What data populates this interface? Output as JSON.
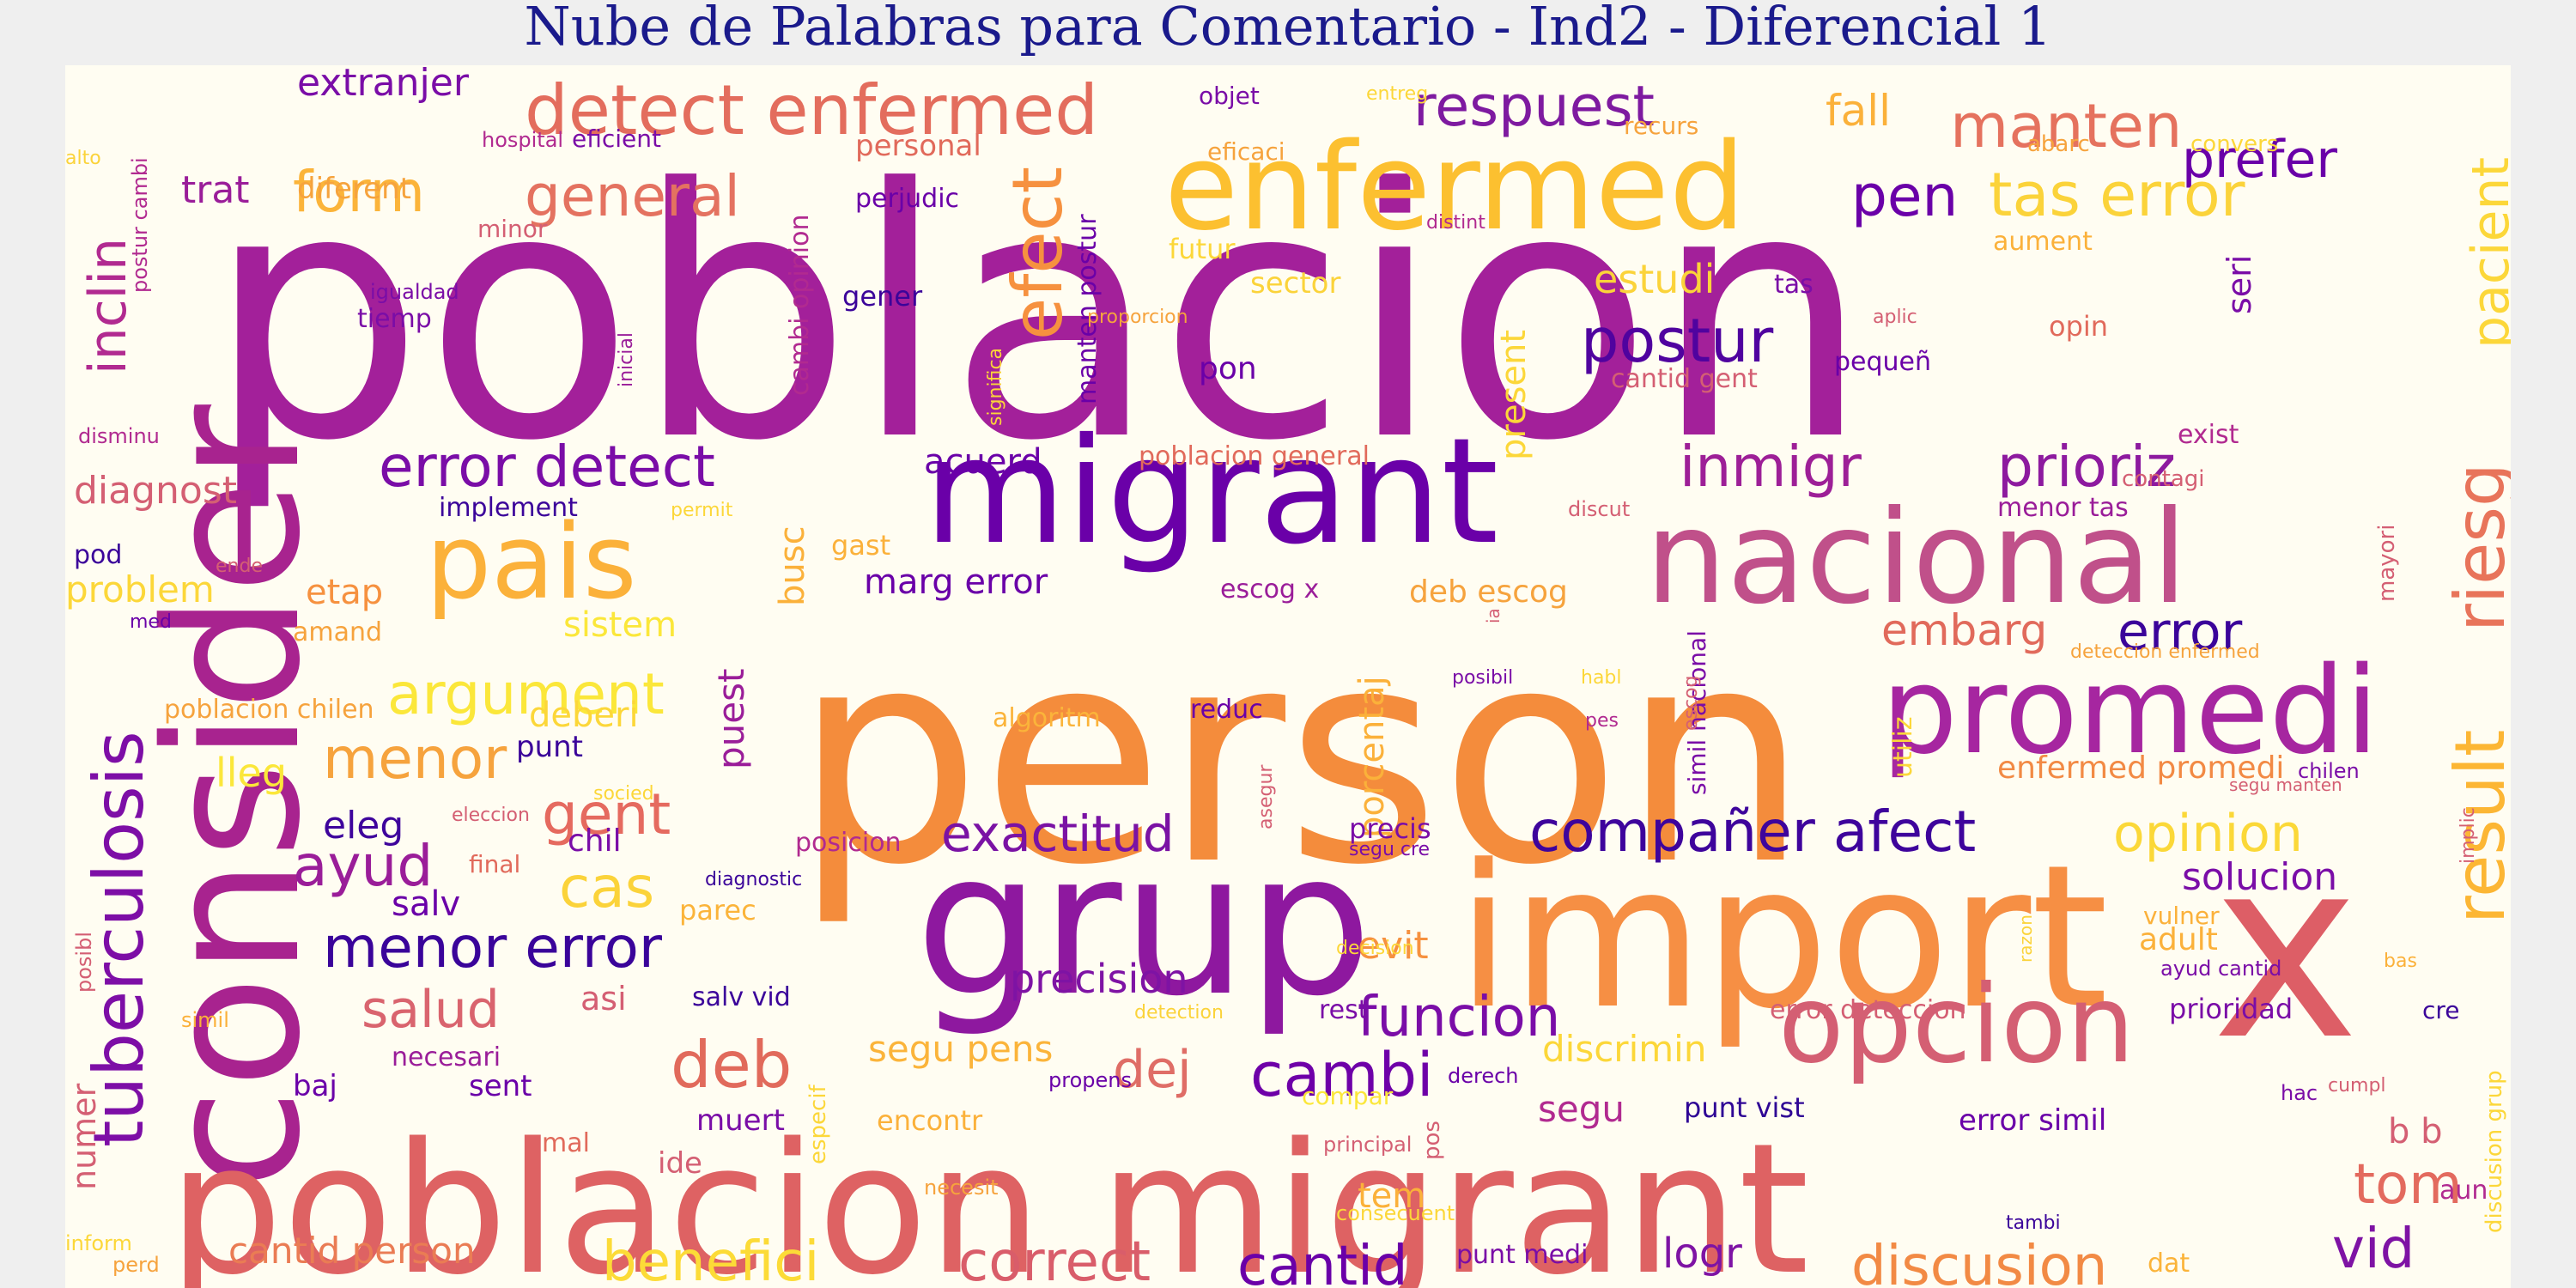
{
  "title": "Nube de Palabras para Comentario - Ind2 - Diferencial 1",
  "chart_data": {
    "type": "wordcloud",
    "colormap": [
      "#0d0887",
      "#6a00a8",
      "#b12a90",
      "#e16462",
      "#fca636",
      "#f0f921"
    ],
    "words": [
      {
        "text": "poblacion",
        "color": "#a3209a"
      },
      {
        "text": "person",
        "color": "#f48c3c"
      },
      {
        "text": "consider",
        "color": "#a8238f"
      },
      {
        "text": "grup",
        "color": "#8e189f"
      },
      {
        "text": "import",
        "color": "#f68f44"
      },
      {
        "text": "x",
        "color": "#dd5e66"
      },
      {
        "text": "poblacion migrant",
        "color": "#de6263"
      },
      {
        "text": "migrant",
        "color": "#6a00a8"
      },
      {
        "text": "enfermed",
        "color": "#fcc030"
      },
      {
        "text": "nacional",
        "color": "#c0508a"
      },
      {
        "text": "promedi",
        "color": "#a626a0"
      },
      {
        "text": "opcion",
        "color": "#d45f73"
      },
      {
        "text": "pais",
        "color": "#fbb13a"
      },
      {
        "text": "detect enfermed",
        "color": "#e36d5d"
      },
      {
        "text": "tuberculosis",
        "color": "#7d0ea6"
      },
      {
        "text": "respuest",
        "color": "#7e1aa0"
      },
      {
        "text": "manten",
        "color": "#e5725e"
      },
      {
        "text": "prefer",
        "color": "#6a00a8"
      },
      {
        "text": "tas error",
        "color": "#fbd33a"
      },
      {
        "text": "pacient",
        "color": "#fcd739"
      },
      {
        "text": "general",
        "color": "#e47260"
      },
      {
        "text": "form",
        "color": "#fbb43a"
      },
      {
        "text": "pen",
        "color": "#6a00a8"
      },
      {
        "text": "efect",
        "color": "#f6913f"
      },
      {
        "text": "postur",
        "color": "#50039f"
      },
      {
        "text": "error detect",
        "color": "#7a0da7"
      },
      {
        "text": "inmigr",
        "color": "#9d1f97"
      },
      {
        "text": "prioriz",
        "color": "#8d1a9f"
      },
      {
        "text": "riesg",
        "color": "#e8745a"
      },
      {
        "text": "error",
        "color": "#3b049a"
      },
      {
        "text": "embarg",
        "color": "#e16a5b"
      },
      {
        "text": "argument",
        "color": "#fbe73a"
      },
      {
        "text": "menor",
        "color": "#f6a33d"
      },
      {
        "text": "gent",
        "color": "#e56a5f"
      },
      {
        "text": "ayud",
        "color": "#9a1d99"
      },
      {
        "text": "cas",
        "color": "#fbd33a"
      },
      {
        "text": "menor error",
        "color": "#3a049a"
      },
      {
        "text": "salud",
        "color": "#d9646e"
      },
      {
        "text": "deb",
        "color": "#e16a5b"
      },
      {
        "text": "exactitud",
        "color": "#7a12a4"
      },
      {
        "text": "compañer afect",
        "color": "#3e049c"
      },
      {
        "text": "opinion",
        "color": "#fbd838"
      },
      {
        "text": "result",
        "color": "#fcb634"
      },
      {
        "text": "cambi",
        "color": "#6e00a8"
      },
      {
        "text": "funcion",
        "color": "#7a0da7"
      },
      {
        "text": "dej",
        "color": "#df6d66"
      },
      {
        "text": "discusion",
        "color": "#f28a44"
      },
      {
        "text": "vid",
        "color": "#7e13a4"
      },
      {
        "text": "tom",
        "color": "#e36a5e"
      },
      {
        "text": "benefici",
        "color": "#fcdb37"
      },
      {
        "text": "correct",
        "color": "#d95d6a"
      },
      {
        "text": "cantid",
        "color": "#6a00a8"
      },
      {
        "text": "cantid person",
        "color": "#ea7c54"
      },
      {
        "text": "logr",
        "color": "#7e13a4"
      },
      {
        "text": "precision",
        "color": "#7e13a4"
      },
      {
        "text": "segu pens",
        "color": "#fbb43a"
      },
      {
        "text": "discrimin",
        "color": "#fcd739"
      },
      {
        "text": "segu",
        "color": "#b12a90"
      },
      {
        "text": "punt vist",
        "color": "#2e0595"
      },
      {
        "text": "error simil",
        "color": "#6a00a8"
      },
      {
        "text": "b b",
        "color": "#d45f73"
      },
      {
        "text": "extranjer",
        "color": "#7a0da7"
      },
      {
        "text": "trat",
        "color": "#9a1d99"
      },
      {
        "text": "diferent",
        "color": "#f6a33d"
      },
      {
        "text": "inclin",
        "color": "#b12a90"
      },
      {
        "text": "diagnost",
        "color": "#d45f73"
      },
      {
        "text": "pod",
        "color": "#3b049a"
      },
      {
        "text": "problem",
        "color": "#fcd739"
      },
      {
        "text": "etap",
        "color": "#f6913f"
      },
      {
        "text": "sistem",
        "color": "#fbe73a"
      },
      {
        "text": "deberi",
        "color": "#fcd739"
      },
      {
        "text": "lleg",
        "color": "#fbe73a"
      },
      {
        "text": "eleg",
        "color": "#3e049c"
      },
      {
        "text": "salv",
        "color": "#6a00a8"
      },
      {
        "text": "asi",
        "color": "#d45f73"
      },
      {
        "text": "baj",
        "color": "#6a00a8"
      },
      {
        "text": "sent",
        "color": "#6a00a8"
      },
      {
        "text": "necesari",
        "color": "#9a1d99"
      },
      {
        "text": "numer",
        "color": "#d45f73"
      },
      {
        "text": "mal",
        "color": "#e16a5b"
      },
      {
        "text": "ide",
        "color": "#d45f73"
      },
      {
        "text": "muert",
        "color": "#7a0da7"
      },
      {
        "text": "estudi",
        "color": "#fbd33a"
      },
      {
        "text": "seri",
        "color": "#7a0da7"
      },
      {
        "text": "fall",
        "color": "#fbb13a"
      },
      {
        "text": "acuerd",
        "color": "#6a00a8"
      },
      {
        "text": "busc",
        "color": "#fbb13a"
      },
      {
        "text": "marg error",
        "color": "#6a00a8"
      },
      {
        "text": "deb escog",
        "color": "#f6a33d"
      },
      {
        "text": "escog x",
        "color": "#9a1d99"
      },
      {
        "text": "present",
        "color": "#fcd739"
      },
      {
        "text": "puest",
        "color": "#9a1d99"
      },
      {
        "text": "porcentaj",
        "color": "#fbb13a"
      },
      {
        "text": "reduc",
        "color": "#6a00a8"
      },
      {
        "text": "algoritm",
        "color": "#fbb43a"
      },
      {
        "text": "precis",
        "color": "#7a0da7"
      },
      {
        "text": "solucion",
        "color": "#7a0da7"
      },
      {
        "text": "adult",
        "color": "#fbb13a"
      },
      {
        "text": "prioridad",
        "color": "#7a0da7"
      },
      {
        "text": "evit",
        "color": "#f6913f"
      },
      {
        "text": "enfermed promedi",
        "color": "#f28a44"
      },
      {
        "text": "error deteccion",
        "color": "#d45f73"
      },
      {
        "text": "personal",
        "color": "#e16a5b"
      },
      {
        "text": "perjudic",
        "color": "#6a00a8"
      },
      {
        "text": "gener",
        "color": "#3b049a"
      },
      {
        "text": "tiemp",
        "color": "#7a0da7"
      },
      {
        "text": "futur",
        "color": "#fcd739"
      },
      {
        "text": "sector",
        "color": "#fbd33a"
      },
      {
        "text": "pon",
        "color": "#6a00a8"
      },
      {
        "text": "poblacion general",
        "color": "#e16a5b"
      },
      {
        "text": "implement",
        "color": "#3b049a"
      },
      {
        "text": "gast",
        "color": "#fbb13a"
      },
      {
        "text": "amand",
        "color": "#f6a33d"
      },
      {
        "text": "poblacion chilen",
        "color": "#f6a33d"
      },
      {
        "text": "punt",
        "color": "#3b049a"
      },
      {
        "text": "chil",
        "color": "#7a0da7"
      },
      {
        "text": "parec",
        "color": "#fbb43a"
      },
      {
        "text": "salv vid",
        "color": "#3b049a"
      },
      {
        "text": "encontr",
        "color": "#fbb13a"
      },
      {
        "text": "tem",
        "color": "#fbb13a"
      },
      {
        "text": "rest",
        "color": "#7a0da7"
      },
      {
        "text": "punt medi",
        "color": "#7a0da7"
      },
      {
        "text": "manten postur",
        "color": "#6a00a8"
      },
      {
        "text": "cambi opinion",
        "color": "#b12a90"
      },
      {
        "text": "cantid gent",
        "color": "#d45f73"
      },
      {
        "text": "pequeñ",
        "color": "#6a00a8"
      },
      {
        "text": "opin",
        "color": "#e16a5b"
      },
      {
        "text": "aument",
        "color": "#fbb13a"
      },
      {
        "text": "exist",
        "color": "#b12a90"
      },
      {
        "text": "contagi",
        "color": "#d45f73"
      },
      {
        "text": "menor tas",
        "color": "#9a1d99"
      },
      {
        "text": "mayori",
        "color": "#d45f73"
      },
      {
        "text": "abarc",
        "color": "#f6a33d"
      },
      {
        "text": "convers",
        "color": "#fcd739"
      },
      {
        "text": "objet",
        "color": "#7a0da7"
      },
      {
        "text": "eficaci",
        "color": "#f6a33d"
      },
      {
        "text": "recurs",
        "color": "#f6a33d"
      },
      {
        "text": "eficient",
        "color": "#7a0da7"
      },
      {
        "text": "hospital",
        "color": "#b12a90"
      },
      {
        "text": "postur cambi",
        "color": "#b12a90"
      },
      {
        "text": "minor",
        "color": "#d45f73"
      },
      {
        "text": "igualdad",
        "color": "#7a0da7"
      },
      {
        "text": "inicial",
        "color": "#9a1d99"
      },
      {
        "text": "proporcion",
        "color": "#f6a33d"
      },
      {
        "text": "distint",
        "color": "#b12a90"
      },
      {
        "text": "significa",
        "color": "#fbd33a"
      },
      {
        "text": "aplic",
        "color": "#d45f73"
      },
      {
        "text": "tas",
        "color": "#7a0da7"
      },
      {
        "text": "simil nacional",
        "color": "#7a0da7"
      },
      {
        "text": "utiliz",
        "color": "#fcd739"
      },
      {
        "text": "chilen",
        "color": "#7a0da7"
      },
      {
        "text": "implic",
        "color": "#d45f73"
      },
      {
        "text": "vulner",
        "color": "#fbb13a"
      },
      {
        "text": "ayud cantid",
        "color": "#7a0da7"
      },
      {
        "text": "bas",
        "color": "#fbb13a"
      },
      {
        "text": "cre",
        "color": "#3b049a"
      },
      {
        "text": "discusion grup",
        "color": "#fcd739"
      },
      {
        "text": "hac",
        "color": "#7a0da7"
      },
      {
        "text": "cumpl",
        "color": "#d45f73"
      },
      {
        "text": "aun",
        "color": "#b12a90"
      },
      {
        "text": "dat",
        "color": "#fbb43a"
      },
      {
        "text": "tambi",
        "color": "#3b049a"
      },
      {
        "text": "pos",
        "color": "#d45f73"
      },
      {
        "text": "principal",
        "color": "#d45f73"
      },
      {
        "text": "consecuent",
        "color": "#fcd739"
      },
      {
        "text": "derech",
        "color": "#6a00a8"
      },
      {
        "text": "compar",
        "color": "#fbe73a"
      },
      {
        "text": "propens",
        "color": "#6a00a8"
      },
      {
        "text": "detection",
        "color": "#fbd33a"
      },
      {
        "text": "especif",
        "color": "#fcd739"
      },
      {
        "text": "necesit",
        "color": "#f6a33d"
      },
      {
        "text": "decision",
        "color": "#fcd739"
      },
      {
        "text": "segu cre",
        "color": "#7a0da7"
      },
      {
        "text": "posicion",
        "color": "#b12a90"
      },
      {
        "text": "asegur",
        "color": "#d45f73"
      },
      {
        "text": "diagnostic",
        "color": "#3b049a"
      },
      {
        "text": "eleccion",
        "color": "#d45f73"
      },
      {
        "text": "final",
        "color": "#e16a5b"
      },
      {
        "text": "socied",
        "color": "#fcd739"
      },
      {
        "text": "posibl",
        "color": "#d45f73"
      },
      {
        "text": "simil",
        "color": "#fbb13a"
      },
      {
        "text": "inform",
        "color": "#fcd739"
      },
      {
        "text": "perd",
        "color": "#f6a33d"
      },
      {
        "text": "alto",
        "color": "#fbd33a"
      },
      {
        "text": "disminu",
        "color": "#b12a90"
      },
      {
        "text": "med",
        "color": "#6a00a8"
      },
      {
        "text": "ende",
        "color": "#d45f73"
      },
      {
        "text": "permit",
        "color": "#fcd739"
      },
      {
        "text": "discut",
        "color": "#d45f73"
      },
      {
        "text": "ia",
        "color": "#d45f73"
      },
      {
        "text": "posibil",
        "color": "#7a0da7"
      },
      {
        "text": "habl",
        "color": "#fcd739"
      },
      {
        "text": "pes",
        "color": "#b12a90"
      },
      {
        "text": "escog",
        "color": "#d45f73"
      },
      {
        "text": "deteccion enfermed",
        "color": "#f6a33d"
      },
      {
        "text": "segu manten",
        "color": "#d45f73"
      },
      {
        "text": "razon",
        "color": "#fbd33a"
      },
      {
        "text": "entreg",
        "color": "#fcd739"
      }
    ]
  }
}
